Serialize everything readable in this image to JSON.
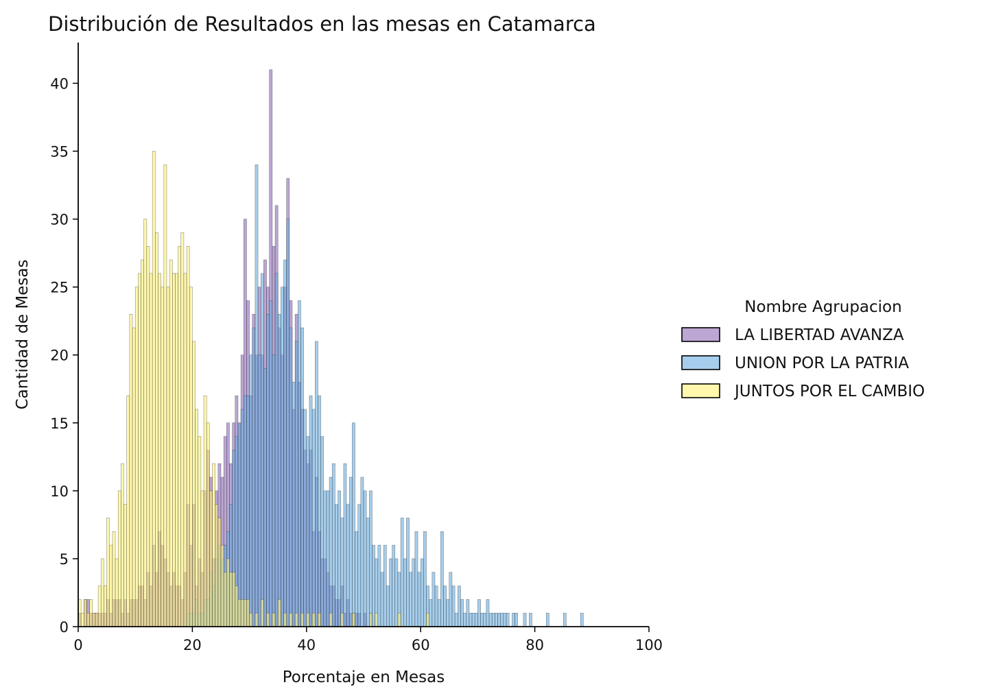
{
  "chart_data": {
    "type": "bar",
    "title": "Distribución de Resultados en las mesas en Catamarca",
    "xlabel": "Porcentaje en Mesas",
    "ylabel": "Cantidad de Mesas",
    "xlim": [
      0,
      100
    ],
    "ylim": [
      0,
      43
    ],
    "xticks": [
      "0",
      "20",
      "40",
      "60",
      "80",
      "100"
    ],
    "yticks": [
      "0",
      "5",
      "10",
      "15",
      "20",
      "25",
      "30",
      "35",
      "40"
    ],
    "bin_width": 0.5,
    "grid": false,
    "legend": {
      "title": "Nombre Agrupacion",
      "placement": "right"
    },
    "series": [
      {
        "name": "LA LIBERTAD AVANZA",
        "color": "#8e6bb8",
        "bins": [
          [
            0,
            1
          ],
          [
            1,
            2
          ],
          [
            1.5,
            2
          ],
          [
            2,
            1
          ],
          [
            2.5,
            1
          ],
          [
            3,
            1
          ],
          [
            3.5,
            1
          ],
          [
            4,
            1
          ],
          [
            4.5,
            1
          ],
          [
            5,
            2
          ],
          [
            5.5,
            1
          ],
          [
            6,
            2
          ],
          [
            6.5,
            2
          ],
          [
            7,
            2
          ],
          [
            7.5,
            1
          ],
          [
            8,
            2
          ],
          [
            8.5,
            1
          ],
          [
            9,
            2
          ],
          [
            9.5,
            2
          ],
          [
            10,
            2
          ],
          [
            10.5,
            3
          ],
          [
            11,
            3
          ],
          [
            11.5,
            2
          ],
          [
            12,
            4
          ],
          [
            12.5,
            3
          ],
          [
            13,
            6
          ],
          [
            13.5,
            4
          ],
          [
            14,
            7
          ],
          [
            14.5,
            6
          ],
          [
            15,
            5
          ],
          [
            15.5,
            4
          ],
          [
            16,
            3
          ],
          [
            16.5,
            4
          ],
          [
            17,
            3
          ],
          [
            17.5,
            3
          ],
          [
            18,
            2
          ],
          [
            18.5,
            4
          ],
          [
            19,
            9
          ],
          [
            19.5,
            6
          ],
          [
            20,
            9
          ],
          [
            20.5,
            3
          ],
          [
            21,
            5
          ],
          [
            21.5,
            4
          ],
          [
            22,
            10
          ],
          [
            22.5,
            13
          ],
          [
            23,
            11
          ],
          [
            23.5,
            5
          ],
          [
            24,
            10
          ],
          [
            24.5,
            12
          ],
          [
            25,
            11
          ],
          [
            25.5,
            14
          ],
          [
            26,
            15
          ],
          [
            26.5,
            12
          ],
          [
            27,
            15
          ],
          [
            27.5,
            17
          ],
          [
            28,
            15
          ],
          [
            28.5,
            20
          ],
          [
            29,
            30
          ],
          [
            29.5,
            24
          ],
          [
            30,
            17
          ],
          [
            30.5,
            23
          ],
          [
            31,
            20
          ],
          [
            31.5,
            25
          ],
          [
            32,
            20
          ],
          [
            32.5,
            27
          ],
          [
            33,
            25
          ],
          [
            33.5,
            41
          ],
          [
            34,
            28
          ],
          [
            34.5,
            31
          ],
          [
            35,
            22
          ],
          [
            35.5,
            20
          ],
          [
            36,
            25
          ],
          [
            36.5,
            33
          ],
          [
            37,
            24
          ],
          [
            37.5,
            16
          ],
          [
            38,
            23
          ],
          [
            38.5,
            18
          ],
          [
            39,
            16
          ],
          [
            39.5,
            13
          ],
          [
            40,
            12
          ],
          [
            40.5,
            13
          ],
          [
            41,
            7
          ],
          [
            41.5,
            11
          ],
          [
            42,
            7
          ],
          [
            42.5,
            5
          ],
          [
            43,
            5
          ],
          [
            43.5,
            4
          ],
          [
            44,
            3
          ],
          [
            44.5,
            3
          ],
          [
            45,
            2
          ],
          [
            45.5,
            2
          ],
          [
            46,
            3
          ],
          [
            46.5,
            1
          ],
          [
            47,
            2
          ],
          [
            47.5,
            1
          ],
          [
            48,
            1
          ],
          [
            48.5,
            1
          ],
          [
            49,
            1
          ],
          [
            50,
            1
          ],
          [
            51,
            1
          ]
        ]
      },
      {
        "name": "UNION POR LA PATRIA",
        "color": "#6aaee0",
        "bins": [
          [
            19,
            1
          ],
          [
            19.5,
            1
          ],
          [
            20,
            1
          ],
          [
            20.5,
            2
          ],
          [
            21,
            1
          ],
          [
            21.5,
            1
          ],
          [
            22,
            2
          ],
          [
            22.5,
            2
          ],
          [
            23,
            4
          ],
          [
            23.5,
            3
          ],
          [
            24,
            5
          ],
          [
            24.5,
            6
          ],
          [
            25,
            5
          ],
          [
            25.5,
            6
          ],
          [
            26,
            7
          ],
          [
            26.5,
            9
          ],
          [
            27,
            13
          ],
          [
            27.5,
            14
          ],
          [
            28,
            15
          ],
          [
            28.5,
            16
          ],
          [
            29,
            17
          ],
          [
            29.5,
            17
          ],
          [
            30,
            20
          ],
          [
            30.5,
            22
          ],
          [
            31,
            34
          ],
          [
            31.5,
            20
          ],
          [
            32,
            26
          ],
          [
            32.5,
            19
          ],
          [
            33,
            23
          ],
          [
            33.5,
            24
          ],
          [
            34,
            20
          ],
          [
            34.5,
            26
          ],
          [
            35,
            23
          ],
          [
            35.5,
            25
          ],
          [
            36,
            27
          ],
          [
            36.5,
            30
          ],
          [
            37,
            22
          ],
          [
            37.5,
            18
          ],
          [
            38,
            21
          ],
          [
            38.5,
            24
          ],
          [
            39,
            22
          ],
          [
            39.5,
            16
          ],
          [
            40,
            14
          ],
          [
            40.5,
            17
          ],
          [
            41,
            16
          ],
          [
            41.5,
            21
          ],
          [
            42,
            17
          ],
          [
            42.5,
            14
          ],
          [
            43,
            10
          ],
          [
            43.5,
            10
          ],
          [
            44,
            11
          ],
          [
            44.5,
            12
          ],
          [
            45,
            9
          ],
          [
            45.5,
            10
          ],
          [
            46,
            8
          ],
          [
            46.5,
            12
          ],
          [
            47,
            9
          ],
          [
            47.5,
            11
          ],
          [
            48,
            15
          ],
          [
            48.5,
            7
          ],
          [
            49,
            9
          ],
          [
            49.5,
            11
          ],
          [
            50,
            10
          ],
          [
            50.5,
            8
          ],
          [
            51,
            10
          ],
          [
            51.5,
            6
          ],
          [
            52,
            5
          ],
          [
            52.5,
            6
          ],
          [
            53,
            4
          ],
          [
            53.5,
            6
          ],
          [
            54,
            3
          ],
          [
            54.5,
            5
          ],
          [
            55,
            6
          ],
          [
            55.5,
            5
          ],
          [
            56,
            4
          ],
          [
            56.5,
            8
          ],
          [
            57,
            5
          ],
          [
            57.5,
            8
          ],
          [
            58,
            4
          ],
          [
            58.5,
            5
          ],
          [
            59,
            7
          ],
          [
            59.5,
            4
          ],
          [
            60,
            5
          ],
          [
            60.5,
            7
          ],
          [
            61,
            3
          ],
          [
            61.5,
            2
          ],
          [
            62,
            4
          ],
          [
            62.5,
            3
          ],
          [
            63,
            2
          ],
          [
            63.5,
            7
          ],
          [
            64,
            3
          ],
          [
            64.5,
            2
          ],
          [
            65,
            4
          ],
          [
            65.5,
            3
          ],
          [
            66,
            1
          ],
          [
            66.5,
            3
          ],
          [
            67,
            2
          ],
          [
            67.5,
            1
          ],
          [
            68,
            2
          ],
          [
            68.5,
            1
          ],
          [
            69,
            1
          ],
          [
            69.5,
            1
          ],
          [
            70,
            2
          ],
          [
            70.5,
            1
          ],
          [
            71,
            1
          ],
          [
            71.5,
            2
          ],
          [
            72,
            1
          ],
          [
            72.5,
            1
          ],
          [
            73,
            1
          ],
          [
            73.5,
            1
          ],
          [
            74,
            1
          ],
          [
            74.5,
            1
          ],
          [
            75,
            1
          ],
          [
            76,
            1
          ],
          [
            76.5,
            1
          ],
          [
            78,
            1
          ],
          [
            79,
            1
          ],
          [
            82,
            1
          ],
          [
            85,
            1
          ],
          [
            88,
            1
          ]
        ]
      },
      {
        "name": "JUNTOS POR EL CAMBIO",
        "color": "#fff176",
        "bins": [
          [
            0,
            2
          ],
          [
            0.5,
            1
          ],
          [
            1,
            2
          ],
          [
            1.5,
            1
          ],
          [
            2,
            2
          ],
          [
            2.5,
            1
          ],
          [
            3,
            1
          ],
          [
            3.5,
            3
          ],
          [
            4,
            5
          ],
          [
            4.5,
            3
          ],
          [
            5,
            8
          ],
          [
            5.5,
            6
          ],
          [
            6,
            7
          ],
          [
            6.5,
            5
          ],
          [
            7,
            10
          ],
          [
            7.5,
            12
          ],
          [
            8,
            9
          ],
          [
            8.5,
            17
          ],
          [
            9,
            23
          ],
          [
            9.5,
            22
          ],
          [
            10,
            25
          ],
          [
            10.5,
            26
          ],
          [
            11,
            27
          ],
          [
            11.5,
            30
          ],
          [
            12,
            28
          ],
          [
            12.5,
            26
          ],
          [
            13,
            35
          ],
          [
            13.5,
            29
          ],
          [
            14,
            26
          ],
          [
            14.5,
            25
          ],
          [
            15,
            34
          ],
          [
            15.5,
            25
          ],
          [
            16,
            27
          ],
          [
            16.5,
            26
          ],
          [
            17,
            26
          ],
          [
            17.5,
            28
          ],
          [
            18,
            29
          ],
          [
            18.5,
            26
          ],
          [
            19,
            28
          ],
          [
            19.5,
            25
          ],
          [
            20,
            21
          ],
          [
            20.5,
            16
          ],
          [
            21,
            14
          ],
          [
            21.5,
            10
          ],
          [
            22,
            17
          ],
          [
            22.5,
            15
          ],
          [
            23,
            10
          ],
          [
            23.5,
            12
          ],
          [
            24,
            9
          ],
          [
            24.5,
            8
          ],
          [
            25,
            6
          ],
          [
            25.5,
            4
          ],
          [
            26,
            5
          ],
          [
            26.5,
            4
          ],
          [
            27,
            4
          ],
          [
            27.5,
            3
          ],
          [
            28,
            2
          ],
          [
            28.5,
            2
          ],
          [
            29,
            2
          ],
          [
            29.5,
            2
          ],
          [
            30,
            1
          ],
          [
            31,
            1
          ],
          [
            32,
            2
          ],
          [
            33,
            1
          ],
          [
            34,
            1
          ],
          [
            35,
            2
          ],
          [
            36,
            1
          ],
          [
            37,
            1
          ],
          [
            38,
            1
          ],
          [
            39,
            1
          ],
          [
            40,
            1
          ],
          [
            41,
            1
          ],
          [
            42,
            1
          ],
          [
            44,
            1
          ],
          [
            46,
            1
          ],
          [
            48,
            1
          ],
          [
            51,
            1
          ],
          [
            52,
            1
          ],
          [
            56,
            1
          ],
          [
            61,
            1
          ]
        ]
      }
    ]
  }
}
